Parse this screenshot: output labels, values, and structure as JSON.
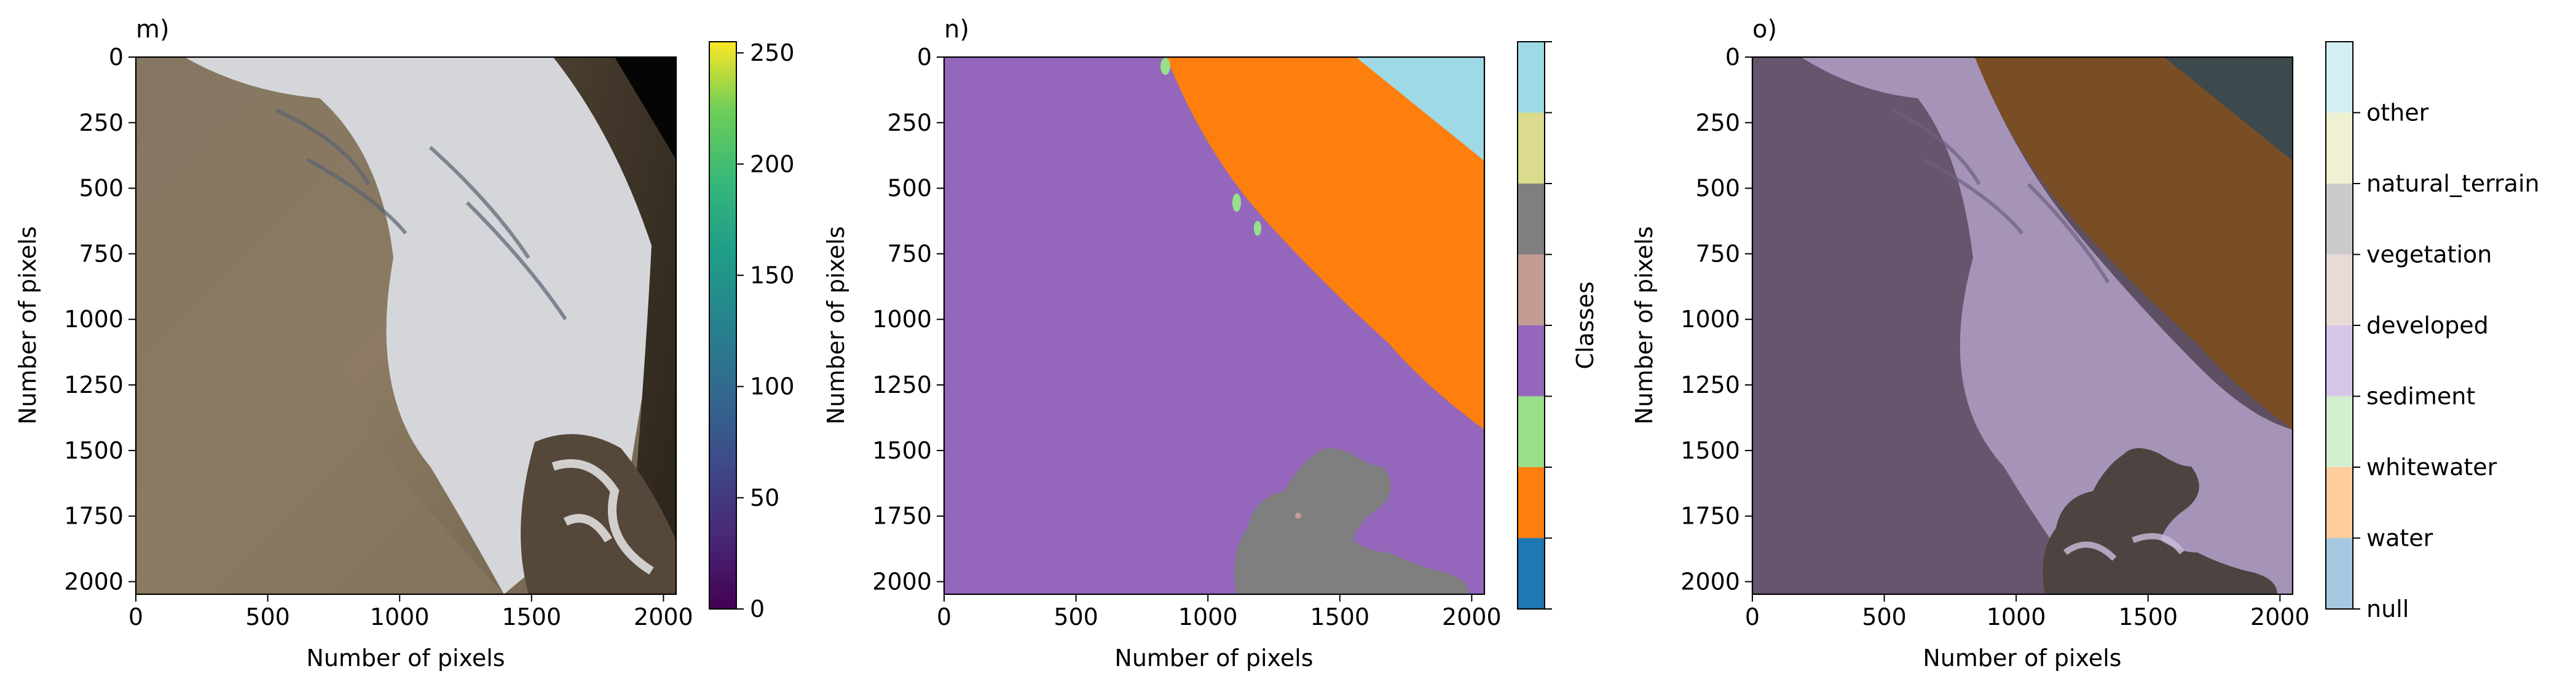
{
  "chart_data": [
    {
      "type": "heatmap",
      "title": "m)",
      "xlabel": "Number of pixels",
      "ylabel": "Number of pixels",
      "xlim": [
        0,
        2048
      ],
      "ylim": [
        2048,
        0
      ],
      "xticks": [
        0,
        500,
        1000,
        1500,
        2000
      ],
      "yticks": [
        0,
        250,
        500,
        750,
        1000,
        1250,
        1500,
        1750,
        2000
      ],
      "image": "RGB aerial image of a beach: sandy tan shore on the left, white foam and wave swash along a diagonal shoreline, dark sea water in the upper right with a black no-data corner, and dark rocky outcrop with white surf near the bottom right",
      "colorbar": {
        "colormap": "viridis",
        "range": [
          0,
          255
        ],
        "ticks": [
          0,
          50,
          100,
          150,
          200,
          250
        ]
      }
    },
    {
      "type": "heatmap",
      "title": "n)",
      "xlabel": "Number of pixels",
      "ylabel": "Number of pixels",
      "xlim": [
        0,
        2048
      ],
      "ylim": [
        2048,
        0
      ],
      "xticks": [
        0,
        500,
        1000,
        1500,
        2000
      ],
      "yticks": [
        0,
        250,
        500,
        750,
        1000,
        1250,
        1500,
        1750,
        2000
      ],
      "image": "Segmentation class map: sediment (purple) across the left and lower area, water (orange) as a diagonal band in the upper right, other (light blue) in the top-right corner, vegetation (gray) patch at the bottom center-right, small whitewater (light green) specks along the shoreline",
      "colorbar": {
        "label": "Classes",
        "colors": [
          "#1f77b4",
          "#ff7f0e",
          "#98df8a",
          "#9467bd",
          "#c49c94",
          "#7f7f7f",
          "#dbdb8d",
          "#9edae5"
        ]
      }
    },
    {
      "type": "heatmap",
      "title": "o)",
      "xlabel": "Number of pixels",
      "ylabel": "Number of pixels",
      "xlim": [
        0,
        2048
      ],
      "ylim": [
        2048,
        0
      ],
      "xticks": [
        0,
        500,
        1000,
        1500,
        2000
      ],
      "yticks": [
        0,
        250,
        500,
        750,
        1000,
        1250,
        1500,
        1750,
        2000
      ],
      "image": "Class map overlaid semi-transparently on the RGB image: purple-tinted beach, orange-brown tinted water band, dark teal top-right corner, rocky area visible at the bottom",
      "colorbar": {
        "labels": [
          "null",
          "water",
          "whitewater",
          "sediment",
          "developed",
          "vegetation",
          "natural_terrain",
          "other"
        ],
        "colors": [
          "#a6c8e0",
          "#ffcc9c",
          "#d4efd0",
          "#d5c6e8",
          "#e9dad6",
          "#cbcbcb",
          "#f0f0d2",
          "#d4eff3"
        ]
      }
    }
  ]
}
